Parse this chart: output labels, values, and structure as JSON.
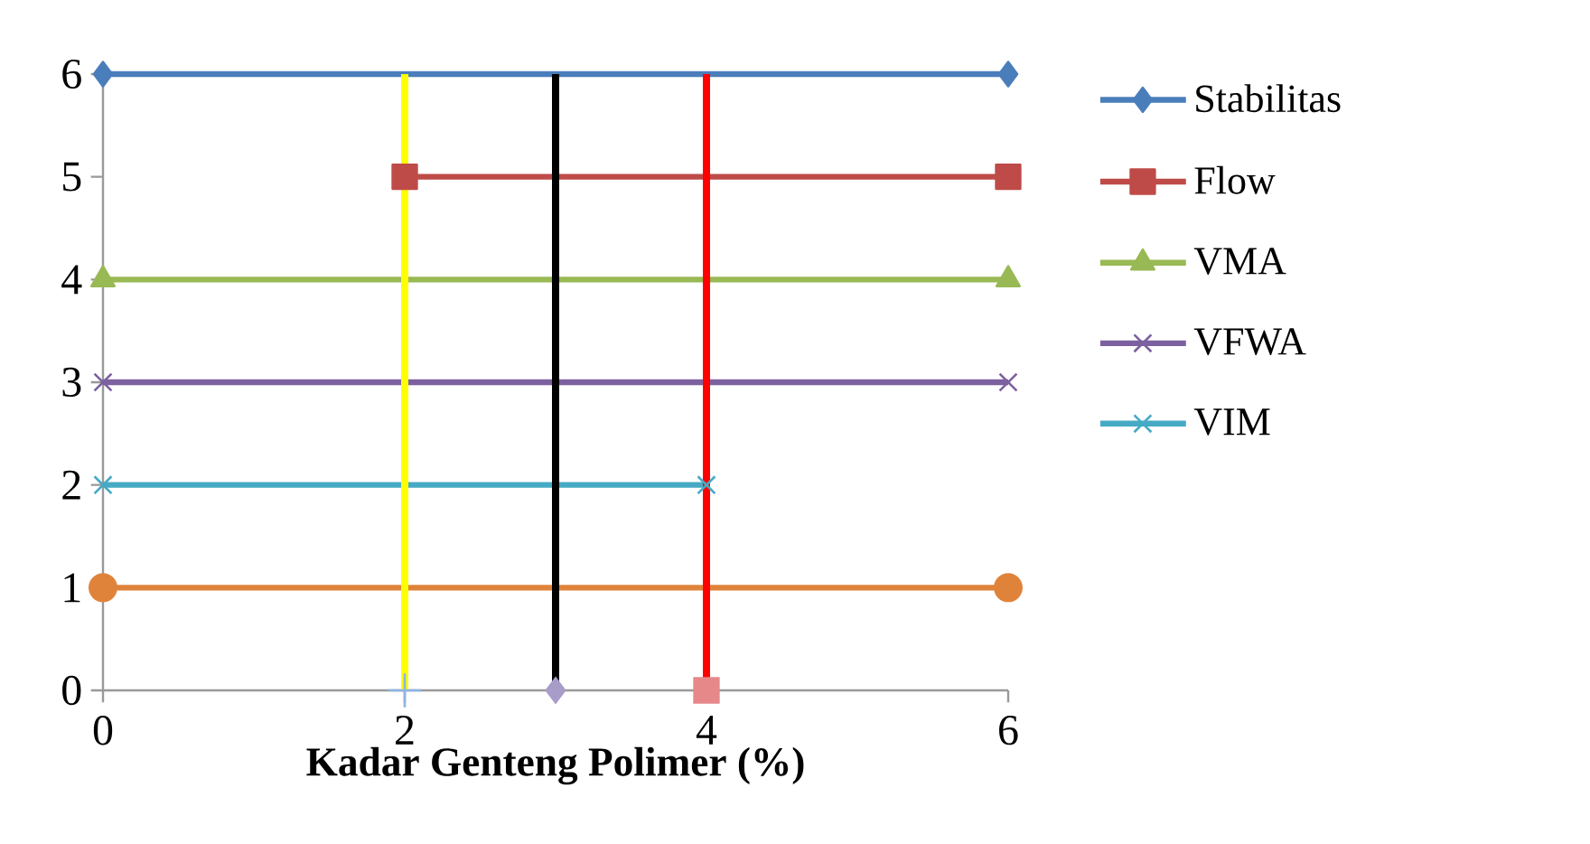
{
  "chart_data": {
    "type": "line",
    "xlabel": "Kadar Genteng Polimer (%)",
    "xlim": [
      0,
      6
    ],
    "xticks": [
      0,
      2,
      4,
      6
    ],
    "ylim": [
      0,
      6
    ],
    "yticks": [
      0,
      1,
      2,
      3,
      4,
      5,
      6
    ],
    "legend": "right",
    "series": [
      {
        "name": "Stabilitas",
        "color": "#4a7ebb",
        "marker": "diamond",
        "x": [
          0,
          6
        ],
        "values": [
          6,
          6
        ]
      },
      {
        "name": "Flow",
        "color": "#be4b48",
        "marker": "square",
        "x": [
          2,
          6
        ],
        "values": [
          5,
          5
        ]
      },
      {
        "name": "VMA",
        "color": "#98b954",
        "marker": "triangle",
        "x": [
          0,
          6
        ],
        "values": [
          4,
          4
        ]
      },
      {
        "name": "VFWA",
        "color": "#7d60a0",
        "marker": "cross",
        "x": [
          0,
          6
        ],
        "values": [
          3,
          3
        ]
      },
      {
        "name": "VIM",
        "color": "#46aac5",
        "marker": "cross",
        "x": [
          0,
          4
        ],
        "values": [
          2,
          2
        ]
      },
      {
        "color": "#e0833a",
        "marker": "circle",
        "x": [
          0,
          6
        ],
        "values": [
          1,
          1
        ]
      },
      {
        "type": "scatter",
        "color": "#8eb4e3",
        "marker": "plus",
        "x": [
          2
        ],
        "values": [
          0
        ]
      },
      {
        "type": "scatter",
        "color": "#a89cc8",
        "marker": "diamond",
        "x": [
          3
        ],
        "values": [
          0
        ]
      },
      {
        "type": "scatter",
        "color": "#e6888a",
        "marker": "square",
        "x": [
          4
        ],
        "values": [
          0
        ]
      }
    ],
    "ref_lines": [
      {
        "axis": "x",
        "value": 2,
        "color": "#ffff00"
      },
      {
        "axis": "x",
        "value": 3,
        "color": "#000000"
      },
      {
        "axis": "x",
        "value": 4,
        "color": "#ff0000"
      }
    ]
  }
}
